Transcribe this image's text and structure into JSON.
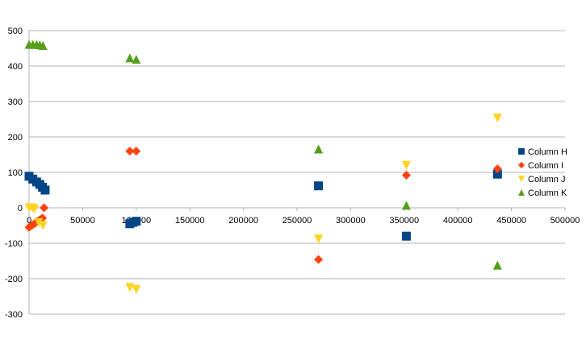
{
  "chart_data": {
    "type": "scatter",
    "title": "",
    "xlabel": "",
    "ylabel": "",
    "xlim": [
      0,
      500000
    ],
    "ylim": [
      -300,
      500
    ],
    "x_ticks": [
      "0",
      "50000",
      "100000",
      "150000",
      "200000",
      "250000",
      "300000",
      "350000",
      "400000",
      "450000",
      "500000"
    ],
    "y_ticks": [
      "-300",
      "-200",
      "-100",
      "0",
      "100",
      "200",
      "300",
      "400",
      "500"
    ],
    "grid": "horizontal",
    "legend_position": "right",
    "series": [
      {
        "name": "Column H",
        "color": "#004586",
        "marker": "square",
        "points": [
          [
            0,
            89
          ],
          [
            3500,
            81
          ],
          [
            7000,
            73
          ],
          [
            10000,
            66
          ],
          [
            12500,
            58
          ],
          [
            15000,
            50
          ],
          [
            94000,
            -45
          ],
          [
            97000,
            -41
          ],
          [
            100000,
            -38
          ],
          [
            270000,
            62
          ],
          [
            352000,
            -80
          ],
          [
            437000,
            95
          ]
        ]
      },
      {
        "name": "Column I",
        "color": "#ff420e",
        "marker": "diamond",
        "points": [
          [
            0,
            -55
          ],
          [
            2500,
            -50
          ],
          [
            5000,
            -45
          ],
          [
            7500,
            -39
          ],
          [
            10000,
            -34
          ],
          [
            12500,
            -29
          ],
          [
            14000,
            0
          ],
          [
            94000,
            160
          ],
          [
            100000,
            160
          ],
          [
            270000,
            -146
          ],
          [
            352000,
            92
          ],
          [
            437000,
            110
          ]
        ]
      },
      {
        "name": "Column J",
        "color": "#ffd320",
        "marker": "triangle-down",
        "points": [
          [
            0,
            0
          ],
          [
            3000,
            0
          ],
          [
            5000,
            -3
          ],
          [
            9000,
            -42
          ],
          [
            13000,
            -50
          ],
          [
            94000,
            -225
          ],
          [
            100000,
            -230
          ],
          [
            270000,
            -88
          ],
          [
            352000,
            120
          ],
          [
            437000,
            253
          ]
        ]
      },
      {
        "name": "Column K",
        "color": "#579d1c",
        "marker": "triangle-up",
        "points": [
          [
            0,
            461
          ],
          [
            3500,
            461
          ],
          [
            7000,
            461
          ],
          [
            10000,
            460
          ],
          [
            13000,
            458
          ],
          [
            94000,
            423
          ],
          [
            100000,
            419
          ],
          [
            270000,
            166
          ],
          [
            352000,
            7
          ],
          [
            437000,
            -162
          ]
        ]
      }
    ]
  }
}
